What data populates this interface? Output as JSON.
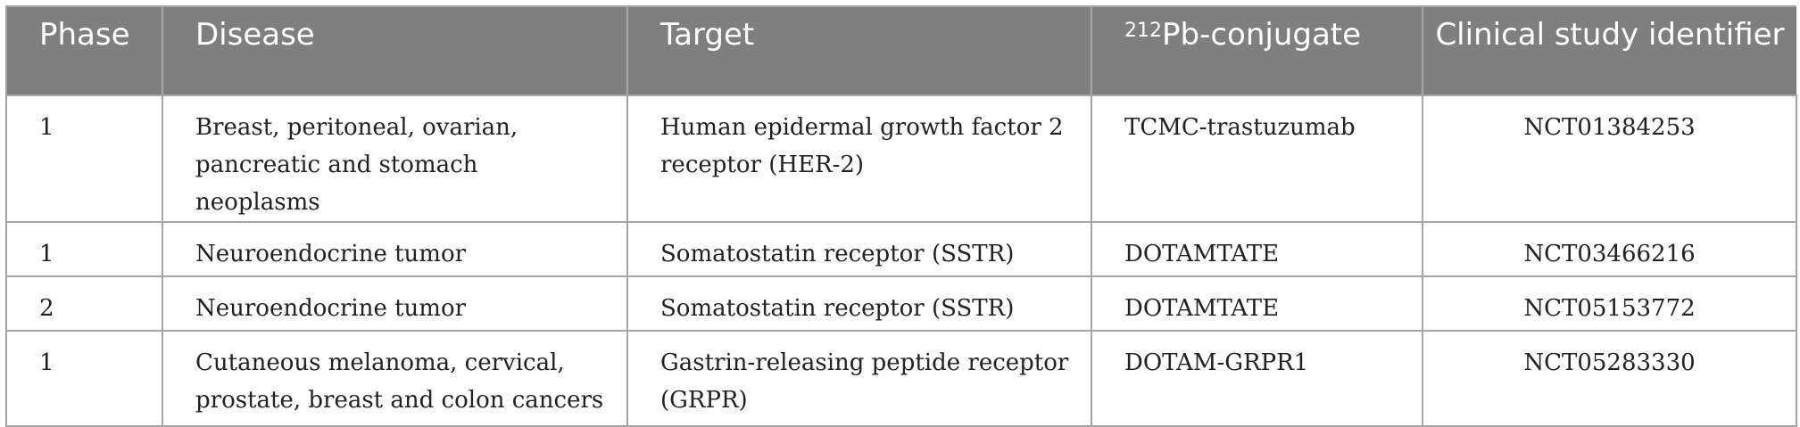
{
  "table": {
    "headers": {
      "phase": "Phase",
      "disease": "Disease",
      "target": "Target",
      "conjugate_sup": "212",
      "conjugate_rest": "Pb-conjugate",
      "identifier": "Clinical study identifier"
    },
    "rows": [
      {
        "phase": "1",
        "disease": "Breast, peritoneal, ovarian, pancreatic and stomach neoplasms",
        "target": "Human epidermal growth factor 2 receptor (HER-2)",
        "conjugate": "TCMC-trastuzumab",
        "identifier": "NCT01384253"
      },
      {
        "phase": "1",
        "disease": "Neuroendocrine tumor",
        "target": "Somatostatin receptor (SSTR)",
        "conjugate": "DOTAMTATE",
        "identifier": "NCT03466216"
      },
      {
        "phase": "2",
        "disease": "Neuroendocrine tumor",
        "target": "Somatostatin receptor (SSTR)",
        "conjugate": "DOTAMTATE",
        "identifier": "NCT05153772"
      },
      {
        "phase": "1",
        "disease": "Cutaneous melanoma, cervical, prostate, breast and colon cancers",
        "target": "Gastrin-releasing peptide receptor (GRPR)",
        "conjugate": "DOTAM-GRPR1",
        "identifier": "NCT05283330"
      }
    ]
  }
}
